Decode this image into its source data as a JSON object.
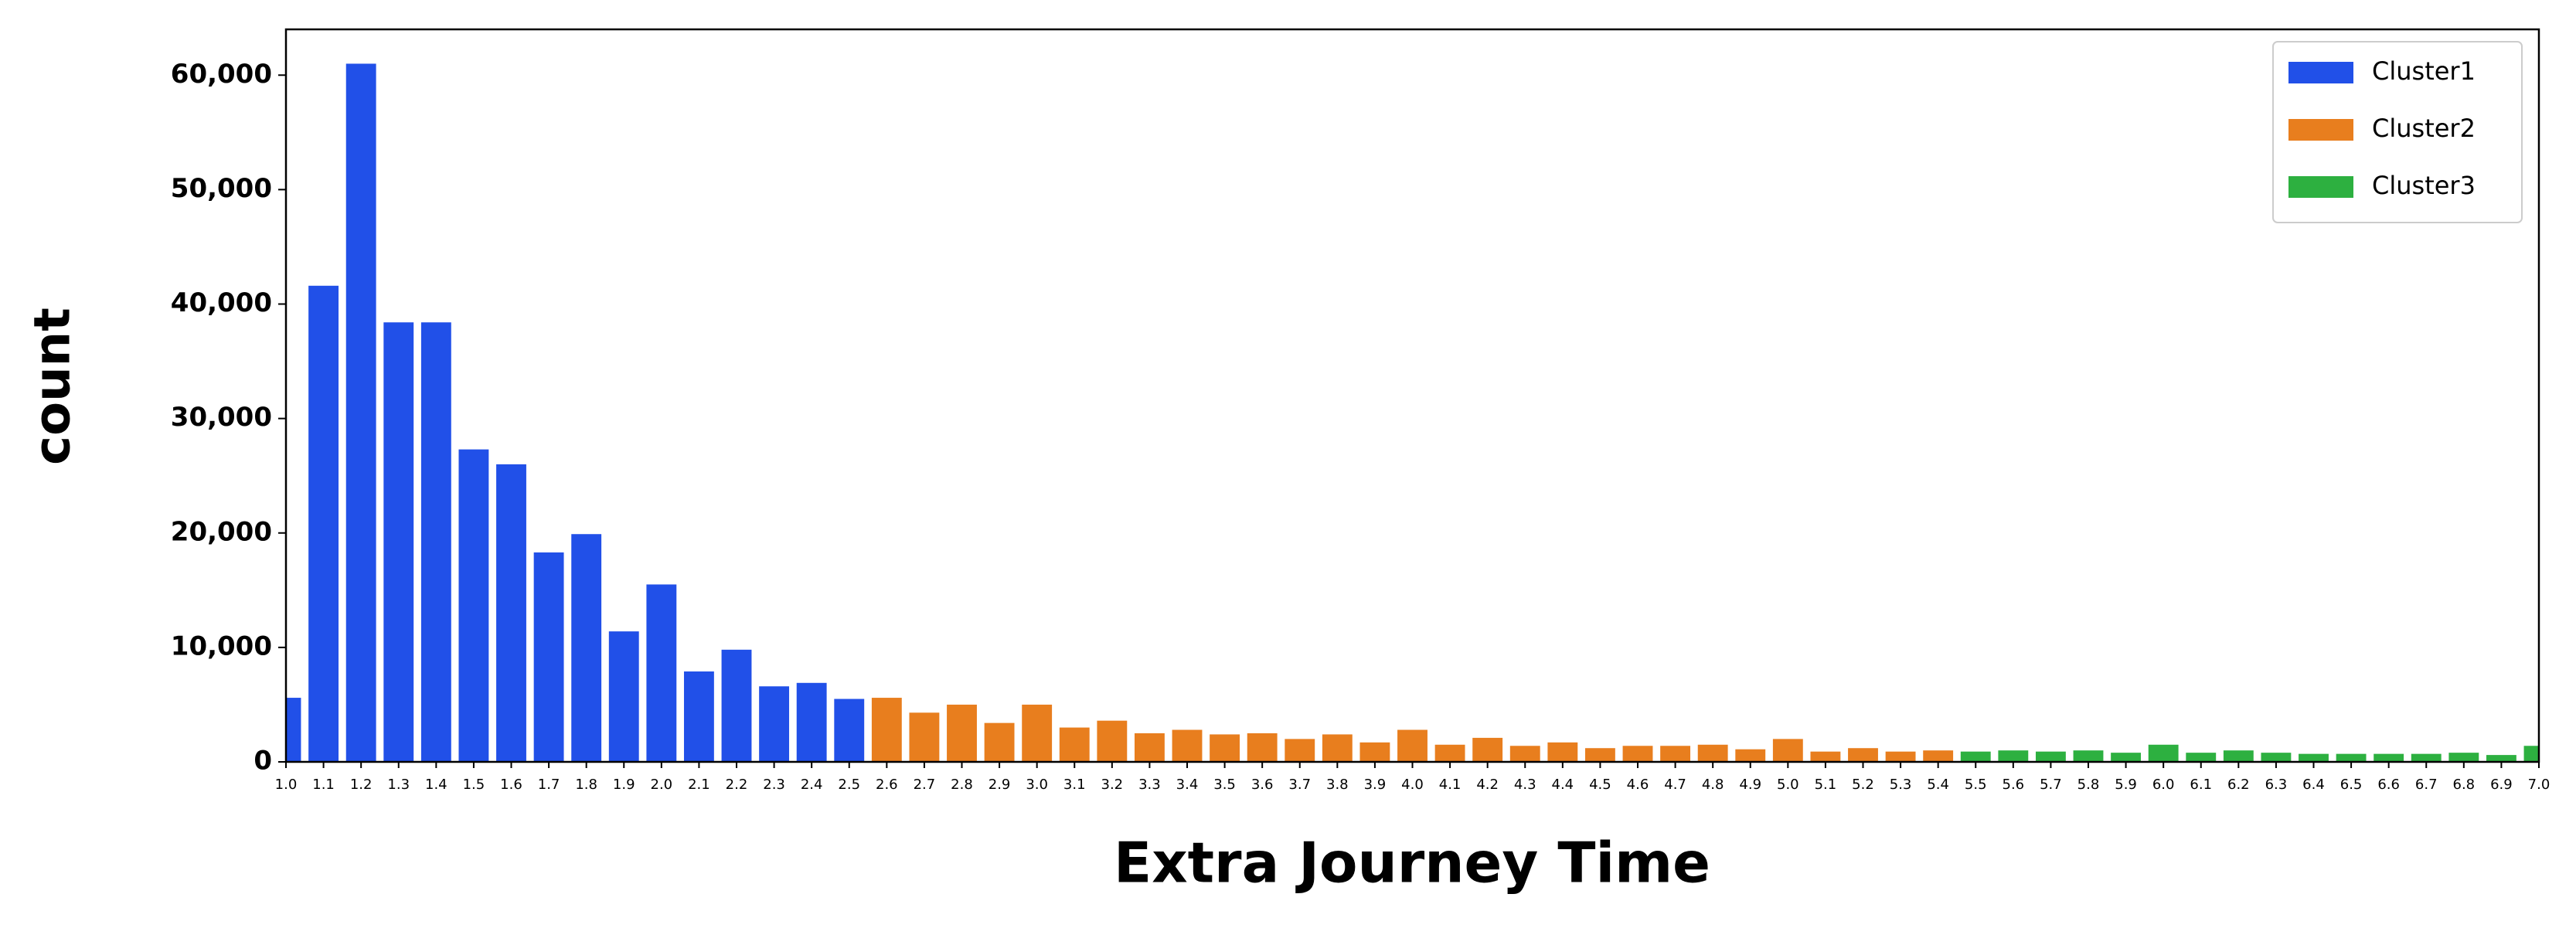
{
  "chart_data": {
    "type": "bar",
    "xlabel": "Extra Journey Time",
    "ylabel": "count",
    "categories": [
      "1.0",
      "1.1",
      "1.2",
      "1.3",
      "1.4",
      "1.5",
      "1.6",
      "1.7",
      "1.8",
      "1.9",
      "2.0",
      "2.1",
      "2.2",
      "2.3",
      "2.4",
      "2.5",
      "2.6",
      "2.7",
      "2.8",
      "2.9",
      "3.0",
      "3.1",
      "3.2",
      "3.3",
      "3.4",
      "3.5",
      "3.6",
      "3.7",
      "3.8",
      "3.9",
      "4.0",
      "4.1",
      "4.2",
      "4.3",
      "4.4",
      "4.5",
      "4.6",
      "4.7",
      "4.8",
      "4.9",
      "5.0",
      "5.1",
      "5.2",
      "5.3",
      "5.4",
      "5.5",
      "5.6",
      "5.7",
      "5.8",
      "5.9",
      "6.0",
      "6.1",
      "6.2",
      "6.3",
      "6.4",
      "6.5",
      "6.6",
      "6.7",
      "6.8",
      "6.9",
      "7.0"
    ],
    "series": [
      {
        "name": "Cluster1",
        "color": "#2150e8",
        "values": [
          5600,
          41600,
          61000,
          38400,
          38400,
          27300,
          26000,
          18300,
          19900,
          11400,
          15500,
          7900,
          9800,
          6600,
          6900,
          5500,
          null,
          null,
          null,
          null,
          null,
          null,
          null,
          null,
          null,
          null,
          null,
          null,
          null,
          null,
          null,
          null,
          null,
          null,
          null,
          null,
          null,
          null,
          null,
          null,
          null,
          null,
          null,
          null,
          null,
          null,
          null,
          null,
          null,
          null,
          null,
          null,
          null,
          null,
          null,
          null,
          null,
          null,
          null,
          null,
          null
        ]
      },
      {
        "name": "Cluster2",
        "color": "#e87e1e",
        "values": [
          null,
          null,
          null,
          null,
          null,
          null,
          null,
          null,
          null,
          null,
          null,
          null,
          null,
          null,
          null,
          null,
          5600,
          4300,
          5000,
          3400,
          5000,
          3000,
          3600,
          2500,
          2800,
          2400,
          2500,
          2000,
          2400,
          1700,
          2800,
          1500,
          2100,
          1400,
          1700,
          1200,
          1400,
          1400,
          1500,
          1100,
          2000,
          900,
          1200,
          900,
          1000,
          null,
          null,
          null,
          null,
          null,
          null,
          null,
          null,
          null,
          null,
          null,
          null,
          null,
          null,
          null,
          null
        ]
      },
      {
        "name": "Cluster3",
        "color": "#2db040",
        "values": [
          null,
          null,
          null,
          null,
          null,
          null,
          null,
          null,
          null,
          null,
          null,
          null,
          null,
          null,
          null,
          null,
          null,
          null,
          null,
          null,
          null,
          null,
          null,
          null,
          null,
          null,
          null,
          null,
          null,
          null,
          null,
          null,
          null,
          null,
          null,
          null,
          null,
          null,
          null,
          null,
          null,
          null,
          null,
          null,
          null,
          900,
          1000,
          900,
          1000,
          800,
          1500,
          800,
          1000,
          800,
          700,
          700,
          700,
          700,
          800,
          600,
          1400
        ]
      }
    ],
    "ylim": [
      0,
      64000
    ],
    "yticks": [
      0,
      {
        "value": 10000,
        "label": "10,000"
      },
      {
        "value": 20000,
        "label": "20,000"
      },
      {
        "value": 30000,
        "label": "30,000"
      },
      {
        "value": 40000,
        "label": "40,000"
      },
      {
        "value": 50000,
        "label": "50,000"
      },
      {
        "value": 60000,
        "label": "60,000"
      }
    ],
    "legend": "upper right"
  }
}
